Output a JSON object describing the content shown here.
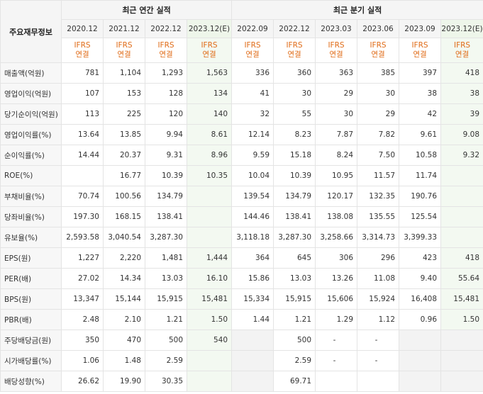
{
  "header": {
    "corner": "주요재무정보",
    "annual": "최근 연간 실적",
    "quarterly": "최근 분기 실적",
    "ifrs_top": "IFRS",
    "ifrs_bottom": "연결"
  },
  "periods": [
    "2020.12",
    "2021.12",
    "2022.12",
    "2023.12(E)",
    "2022.09",
    "2022.12",
    "2023.03",
    "2023.06",
    "2023.09",
    "2023.12(E)"
  ],
  "rows": [
    {
      "label": "매출액(억원)",
      "values": [
        "781",
        "1,104",
        "1,293",
        "1,563",
        "336",
        "360",
        "363",
        "385",
        "397",
        "418"
      ]
    },
    {
      "label": "영업이익(억원)",
      "values": [
        "107",
        "153",
        "128",
        "134",
        "41",
        "30",
        "29",
        "30",
        "38",
        "38"
      ]
    },
    {
      "label": "당기순이익(억원)",
      "values": [
        "113",
        "225",
        "120",
        "140",
        "32",
        "55",
        "30",
        "29",
        "42",
        "39"
      ]
    },
    {
      "label": "영업이익률(%)",
      "values": [
        "13.64",
        "13.85",
        "9.94",
        "8.61",
        "12.14",
        "8.23",
        "7.87",
        "7.82",
        "9.61",
        "9.08"
      ]
    },
    {
      "label": "순이익률(%)",
      "values": [
        "14.44",
        "20.37",
        "9.31",
        "8.96",
        "9.59",
        "15.18",
        "8.24",
        "7.50",
        "10.58",
        "9.32"
      ]
    },
    {
      "label": "ROE(%)",
      "values": [
        "",
        "16.77",
        "10.39",
        "10.35",
        "10.04",
        "10.39",
        "10.95",
        "11.57",
        "11.74",
        ""
      ]
    },
    {
      "label": "부채비율(%)",
      "values": [
        "70.74",
        "100.56",
        "134.79",
        "",
        "139.54",
        "134.79",
        "120.17",
        "132.35",
        "190.76",
        ""
      ]
    },
    {
      "label": "당좌비율(%)",
      "values": [
        "197.30",
        "168.15",
        "138.41",
        "",
        "144.46",
        "138.41",
        "138.08",
        "135.55",
        "125.54",
        ""
      ]
    },
    {
      "label": "유보율(%)",
      "values": [
        "2,593.58",
        "3,040.54",
        "3,287.30",
        "",
        "3,118.18",
        "3,287.30",
        "3,258.66",
        "3,314.73",
        "3,399.33",
        ""
      ]
    },
    {
      "label": "EPS(원)",
      "values": [
        "1,227",
        "2,220",
        "1,481",
        "1,444",
        "364",
        "645",
        "306",
        "296",
        "423",
        "418"
      ]
    },
    {
      "label": "PER(배)",
      "values": [
        "27.02",
        "14.34",
        "13.03",
        "16.10",
        "15.86",
        "13.03",
        "13.26",
        "11.08",
        "9.40",
        "55.64"
      ]
    },
    {
      "label": "BPS(원)",
      "values": [
        "13,347",
        "15,144",
        "15,915",
        "15,481",
        "15,334",
        "15,915",
        "15,606",
        "15,924",
        "16,408",
        "15,481"
      ]
    },
    {
      "label": "PBR(배)",
      "values": [
        "2.48",
        "2.10",
        "1.21",
        "1.50",
        "1.44",
        "1.21",
        "1.29",
        "1.12",
        "0.96",
        "1.50"
      ]
    },
    {
      "label": "주당배당금(원)",
      "values": [
        "350",
        "470",
        "500",
        "540",
        "",
        "500",
        "-",
        "-",
        "",
        ""
      ]
    },
    {
      "label": "시가배당률(%)",
      "values": [
        "1.06",
        "1.48",
        "2.59",
        "",
        "",
        "2.59",
        "-",
        "-",
        "",
        ""
      ]
    },
    {
      "label": "배당성향(%)",
      "values": [
        "26.62",
        "19.90",
        "30.35",
        "",
        "",
        "69.71",
        "",
        "",
        "",
        ""
      ]
    }
  ]
}
